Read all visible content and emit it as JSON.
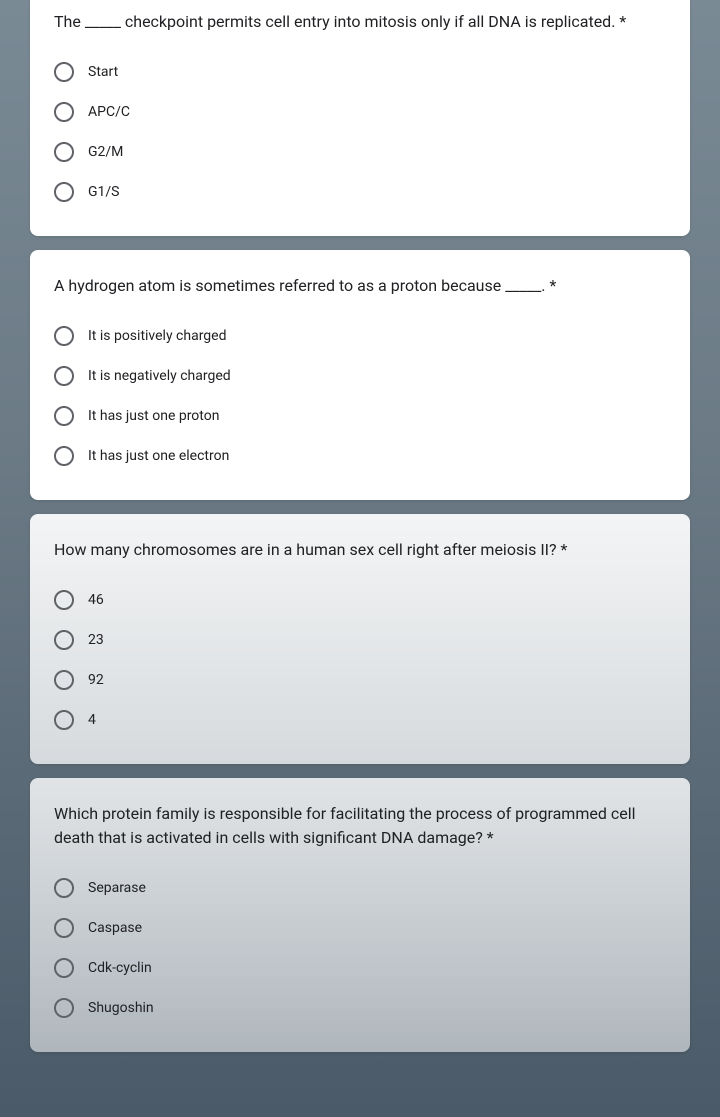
{
  "questions": [
    {
      "text": "The _____ checkpoint permits cell entry into mitosis only if all DNA is replicated. *",
      "options": [
        "Start",
        "APC/C",
        "G2/M",
        "G1/S"
      ]
    },
    {
      "text": "A hydrogen atom is sometimes referred to as a proton because _____. *",
      "options": [
        "It is positively charged",
        "It is negatively charged",
        "It has just one proton",
        "It has just one electron"
      ]
    },
    {
      "text": "How many chromosomes are in a human sex cell right after meiosis II? *",
      "options": [
        "46",
        "23",
        "92",
        "4"
      ]
    },
    {
      "text": "Which protein family is responsible for facilitating the process of programmed cell death that is activated in cells with significant DNA damage? *",
      "options": [
        "Separase",
        "Caspase",
        "Cdk-cyclin",
        "Shugoshin"
      ]
    }
  ],
  "colors": {
    "card_bg": "#ffffff",
    "text": "#202124",
    "radio_border": "#5f6368"
  }
}
